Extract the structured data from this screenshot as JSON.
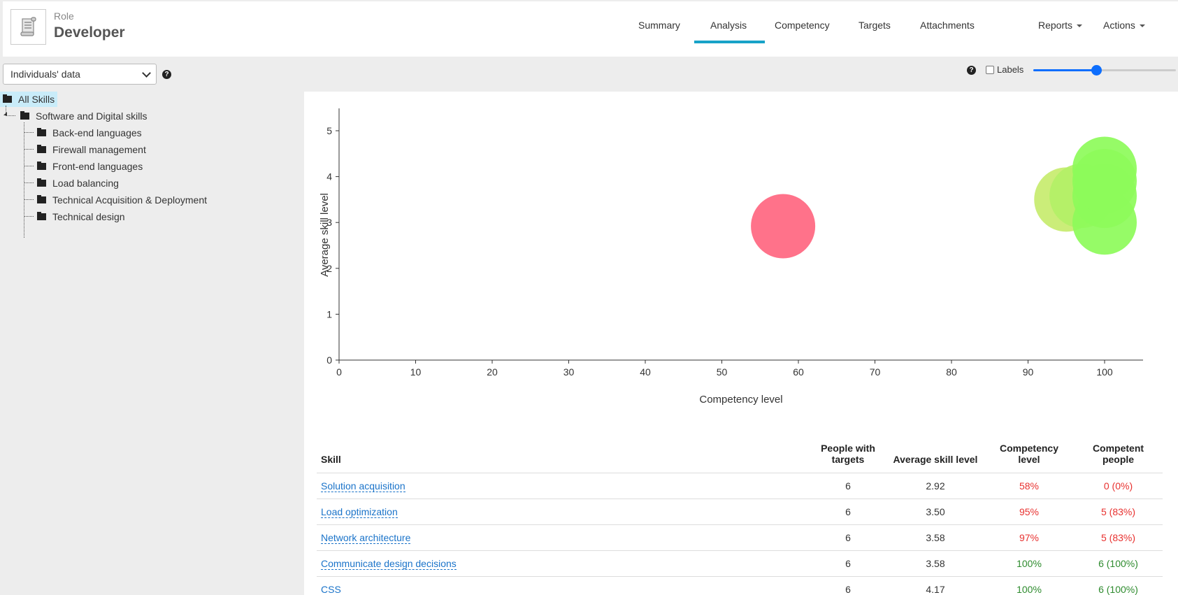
{
  "header": {
    "role_label": "Role",
    "role_name": "Developer",
    "tabs": [
      {
        "label": "Summary"
      },
      {
        "label": "Analysis"
      },
      {
        "label": "Competency"
      },
      {
        "label": "Targets"
      },
      {
        "label": "Attachments"
      }
    ],
    "active_tab": "Analysis",
    "menus": [
      {
        "label": "Reports"
      },
      {
        "label": "Actions"
      }
    ]
  },
  "toolbar": {
    "data_select_value": "Individuals' data",
    "help_glyph": "?",
    "labels_text": "Labels",
    "labels_checked": false,
    "slider_fraction": 0.44
  },
  "tree": {
    "root": "All Skills",
    "category": "Software and Digital skills",
    "children": [
      "Back-end languages",
      "Firewall management",
      "Front-end languages",
      "Load balancing",
      "Technical Acquisition & Deployment",
      "Technical design"
    ]
  },
  "chart_data": {
    "type": "scatter",
    "xlabel": "Competency level",
    "ylabel": "Average skill level",
    "xlim": [
      0,
      105
    ],
    "ylim": [
      0,
      5.5
    ],
    "x_ticks": [
      0,
      10,
      20,
      30,
      40,
      50,
      60,
      70,
      80,
      90,
      100
    ],
    "y_ticks": [
      0,
      1,
      2,
      3,
      4,
      5
    ],
    "legend": "none",
    "grid": false,
    "points": [
      {
        "x": 58,
        "y": 2.92,
        "color": "#ff6680"
      },
      {
        "x": 95,
        "y": 3.5,
        "color": "#c7ec6e"
      },
      {
        "x": 97,
        "y": 3.58,
        "color": "#b3f067"
      },
      {
        "x": 100,
        "y": 3.58,
        "color": "#8dfb5a"
      },
      {
        "x": 100,
        "y": 4.17,
        "color": "#8dfb5a"
      },
      {
        "x": 100,
        "y": 3.0,
        "color": "#8dfb5a"
      },
      {
        "x": 100,
        "y": 3.9,
        "color": "#8dfb5a"
      }
    ]
  },
  "table": {
    "columns": [
      "Skill",
      "People with targets",
      "Average skill level",
      "Competency level",
      "Competent people"
    ],
    "rows": [
      {
        "skill": "Solution acquisition",
        "people": "6",
        "avg": "2.92",
        "competency": "58%",
        "competent": "0 (0%)",
        "status": "bad"
      },
      {
        "skill": "Load optimization",
        "people": "6",
        "avg": "3.50",
        "competency": "95%",
        "competent": "5 (83%)",
        "status": "bad"
      },
      {
        "skill": "Network architecture",
        "people": "6",
        "avg": "3.58",
        "competency": "97%",
        "competent": "5 (83%)",
        "status": "bad"
      },
      {
        "skill": "Communicate design decisions",
        "people": "6",
        "avg": "3.58",
        "competency": "100%",
        "competent": "6 (100%)",
        "status": "good"
      },
      {
        "skill": "CSS",
        "people": "6",
        "avg": "4.17",
        "competency": "100%",
        "competent": "6 (100%)",
        "status": "good"
      }
    ]
  },
  "colors": {
    "accent": "#17a2c8",
    "link": "#1a73c9",
    "bad": "#e8312f",
    "good": "#2e8b2e",
    "slider": "#0d6efd",
    "tree_selected": "#c9ecf9"
  }
}
